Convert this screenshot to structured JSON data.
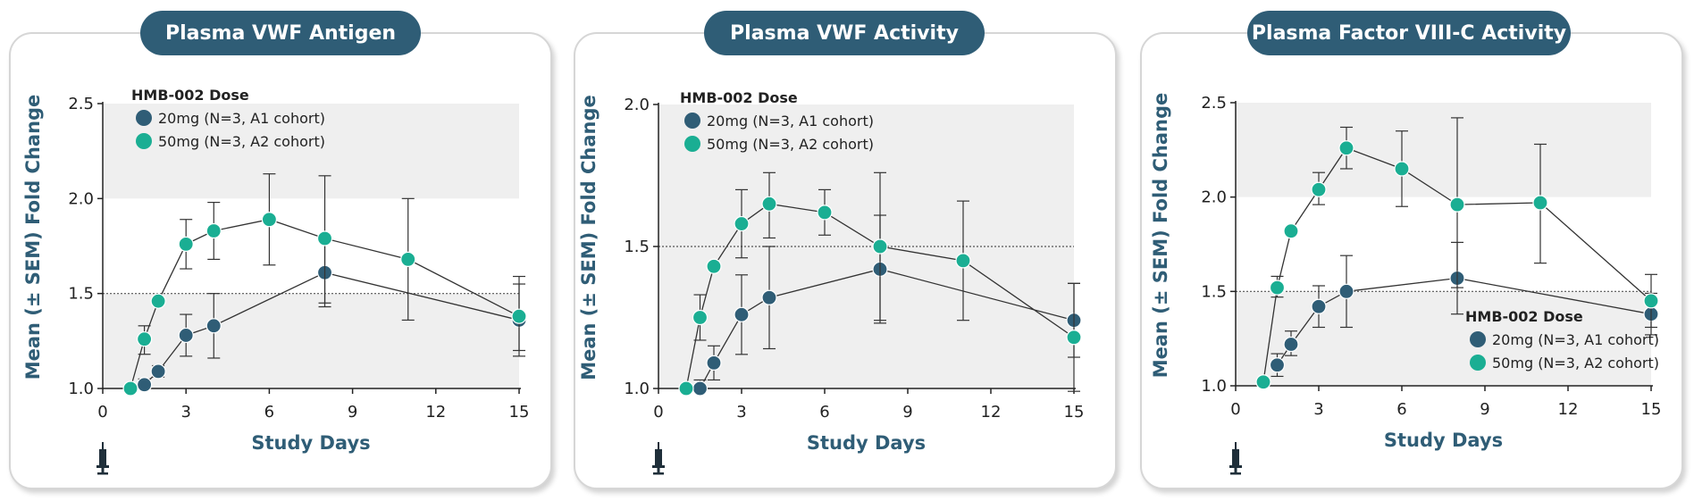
{
  "chart_data": [
    {
      "type": "scatter",
      "title": "Plasma VWF Antigen",
      "xlabel": "Study Days",
      "ylabel": "Mean (± SEM) Fold Change",
      "xlim": [
        0,
        15
      ],
      "ylim": [
        1.0,
        2.5
      ],
      "xticks": [
        "0",
        "3",
        "6",
        "9",
        "12",
        "15"
      ],
      "yticks": [
        "1.0",
        "1.5",
        "2.0",
        "2.5"
      ],
      "reference_line": 1.5,
      "bands": [
        [
          2.0,
          2.5
        ],
        [
          1.0,
          1.5
        ]
      ],
      "legend_position": "top-left",
      "legend_title": "HMB-002 Dose",
      "series": [
        {
          "name": "20mg (N=3, A1 cohort)",
          "color": "#2f5d76",
          "points": [
            {
              "x": 1.5,
              "y": 1.02,
              "lo": 1.0,
              "hi": 1.05
            },
            {
              "x": 2,
              "y": 1.09,
              "lo": 1.06,
              "hi": 1.12
            },
            {
              "x": 3,
              "y": 1.28,
              "lo": 1.17,
              "hi": 1.39
            },
            {
              "x": 4,
              "y": 1.33,
              "lo": 1.16,
              "hi": 1.5
            },
            {
              "x": 8,
              "y": 1.61,
              "lo": 1.43,
              "hi": 1.79
            },
            {
              "x": 15,
              "y": 1.36,
              "lo": 1.17,
              "hi": 1.55
            }
          ]
        },
        {
          "name": "50mg (N=3, A2 cohort)",
          "color": "#1aae93",
          "points": [
            {
              "x": 1,
              "y": 1.0,
              "lo": 1.0,
              "hi": 1.0
            },
            {
              "x": 1.5,
              "y": 1.26,
              "lo": 1.18,
              "hi": 1.33
            },
            {
              "x": 2,
              "y": 1.46,
              "lo": 1.46,
              "hi": 1.46
            },
            {
              "x": 3,
              "y": 1.76,
              "lo": 1.63,
              "hi": 1.89
            },
            {
              "x": 4,
              "y": 1.83,
              "lo": 1.68,
              "hi": 1.98
            },
            {
              "x": 6,
              "y": 1.89,
              "lo": 1.65,
              "hi": 2.13
            },
            {
              "x": 8,
              "y": 1.79,
              "lo": 1.45,
              "hi": 2.12
            },
            {
              "x": 11,
              "y": 1.68,
              "lo": 1.36,
              "hi": 2.0
            },
            {
              "x": 15,
              "y": 1.38,
              "lo": 1.2,
              "hi": 1.59
            }
          ]
        }
      ]
    },
    {
      "type": "scatter",
      "title": "Plasma VWF Activity",
      "xlabel": "Study Days",
      "ylabel": "Mean (± SEM) Fold Change",
      "xlim": [
        0,
        15
      ],
      "ylim": [
        1.0,
        2.0
      ],
      "xticks": [
        "0",
        "3",
        "6",
        "9",
        "12",
        "15"
      ],
      "yticks": [
        "1.0",
        "1.5",
        "2.0"
      ],
      "reference_line": 1.5,
      "bands": [
        [
          1.5,
          2.0
        ],
        [
          1.0,
          1.5
        ]
      ],
      "legend_position": "top-left",
      "legend_title": "HMB-002 Dose",
      "series": [
        {
          "name": "20mg (N=3, A1 cohort)",
          "color": "#2f5d76",
          "points": [
            {
              "x": 1.5,
              "y": 1.0,
              "lo": 1.0,
              "hi": 1.03
            },
            {
              "x": 2,
              "y": 1.09,
              "lo": 1.03,
              "hi": 1.15
            },
            {
              "x": 3,
              "y": 1.26,
              "lo": 1.12,
              "hi": 1.4
            },
            {
              "x": 4,
              "y": 1.32,
              "lo": 1.14,
              "hi": 1.5
            },
            {
              "x": 8,
              "y": 1.42,
              "lo": 1.23,
              "hi": 1.61
            },
            {
              "x": 15,
              "y": 1.24,
              "lo": 1.11,
              "hi": 1.37
            }
          ]
        },
        {
          "name": "50mg (N=3, A2 cohort)",
          "color": "#1aae93",
          "points": [
            {
              "x": 1,
              "y": 1.0,
              "lo": 1.0,
              "hi": 1.0
            },
            {
              "x": 1.5,
              "y": 1.25,
              "lo": 1.17,
              "hi": 1.33
            },
            {
              "x": 2,
              "y": 1.43,
              "lo": 1.43,
              "hi": 1.43
            },
            {
              "x": 3,
              "y": 1.58,
              "lo": 1.46,
              "hi": 1.7
            },
            {
              "x": 4,
              "y": 1.65,
              "lo": 1.53,
              "hi": 1.76
            },
            {
              "x": 6,
              "y": 1.62,
              "lo": 1.54,
              "hi": 1.7
            },
            {
              "x": 8,
              "y": 1.5,
              "lo": 1.24,
              "hi": 1.76
            },
            {
              "x": 11,
              "y": 1.45,
              "lo": 1.24,
              "hi": 1.66
            },
            {
              "x": 15,
              "y": 1.18,
              "lo": 0.99,
              "hi": 1.37
            }
          ]
        }
      ]
    },
    {
      "type": "scatter",
      "title": "Plasma Factor VIII-C Activity",
      "xlabel": "Study Days",
      "ylabel": "Mean (± SEM) Fold Change",
      "xlim": [
        0,
        15
      ],
      "ylim": [
        1.0,
        2.5
      ],
      "xticks": [
        "0",
        "3",
        "6",
        "9",
        "12",
        "15"
      ],
      "yticks": [
        "1.0",
        "1.5",
        "2.0",
        "2.5"
      ],
      "reference_line": 1.5,
      "bands": [
        [
          2.0,
          2.5
        ],
        [
          1.0,
          1.5
        ]
      ],
      "legend_position": "bottom-right",
      "legend_title": "HMB-002 Dose",
      "series": [
        {
          "name": "20mg (N=3, A1 cohort)",
          "color": "#2f5d76",
          "points": [
            {
              "x": 1.5,
              "y": 1.11,
              "lo": 1.05,
              "hi": 1.17
            },
            {
              "x": 2,
              "y": 1.22,
              "lo": 1.16,
              "hi": 1.29
            },
            {
              "x": 3,
              "y": 1.42,
              "lo": 1.31,
              "hi": 1.53
            },
            {
              "x": 4,
              "y": 1.5,
              "lo": 1.31,
              "hi": 1.69
            },
            {
              "x": 8,
              "y": 1.57,
              "lo": 1.38,
              "hi": 1.76
            },
            {
              "x": 15,
              "y": 1.38,
              "lo": 1.27,
              "hi": 1.49
            }
          ]
        },
        {
          "name": "50mg (N=3, A2 cohort)",
          "color": "#1aae93",
          "points": [
            {
              "x": 1,
              "y": 1.02,
              "lo": 1.0,
              "hi": 1.04
            },
            {
              "x": 1.5,
              "y": 1.52,
              "lo": 1.47,
              "hi": 1.58
            },
            {
              "x": 2,
              "y": 1.82,
              "lo": 1.82,
              "hi": 1.82
            },
            {
              "x": 3,
              "y": 2.04,
              "lo": 1.96,
              "hi": 2.13
            },
            {
              "x": 4,
              "y": 2.26,
              "lo": 2.15,
              "hi": 2.37
            },
            {
              "x": 6,
              "y": 2.15,
              "lo": 1.95,
              "hi": 2.35
            },
            {
              "x": 8,
              "y": 1.96,
              "lo": 1.52,
              "hi": 2.42
            },
            {
              "x": 11,
              "y": 1.97,
              "lo": 1.65,
              "hi": 2.28
            },
            {
              "x": 15,
              "y": 1.45,
              "lo": 1.31,
              "hi": 1.59
            }
          ]
        }
      ]
    }
  ]
}
